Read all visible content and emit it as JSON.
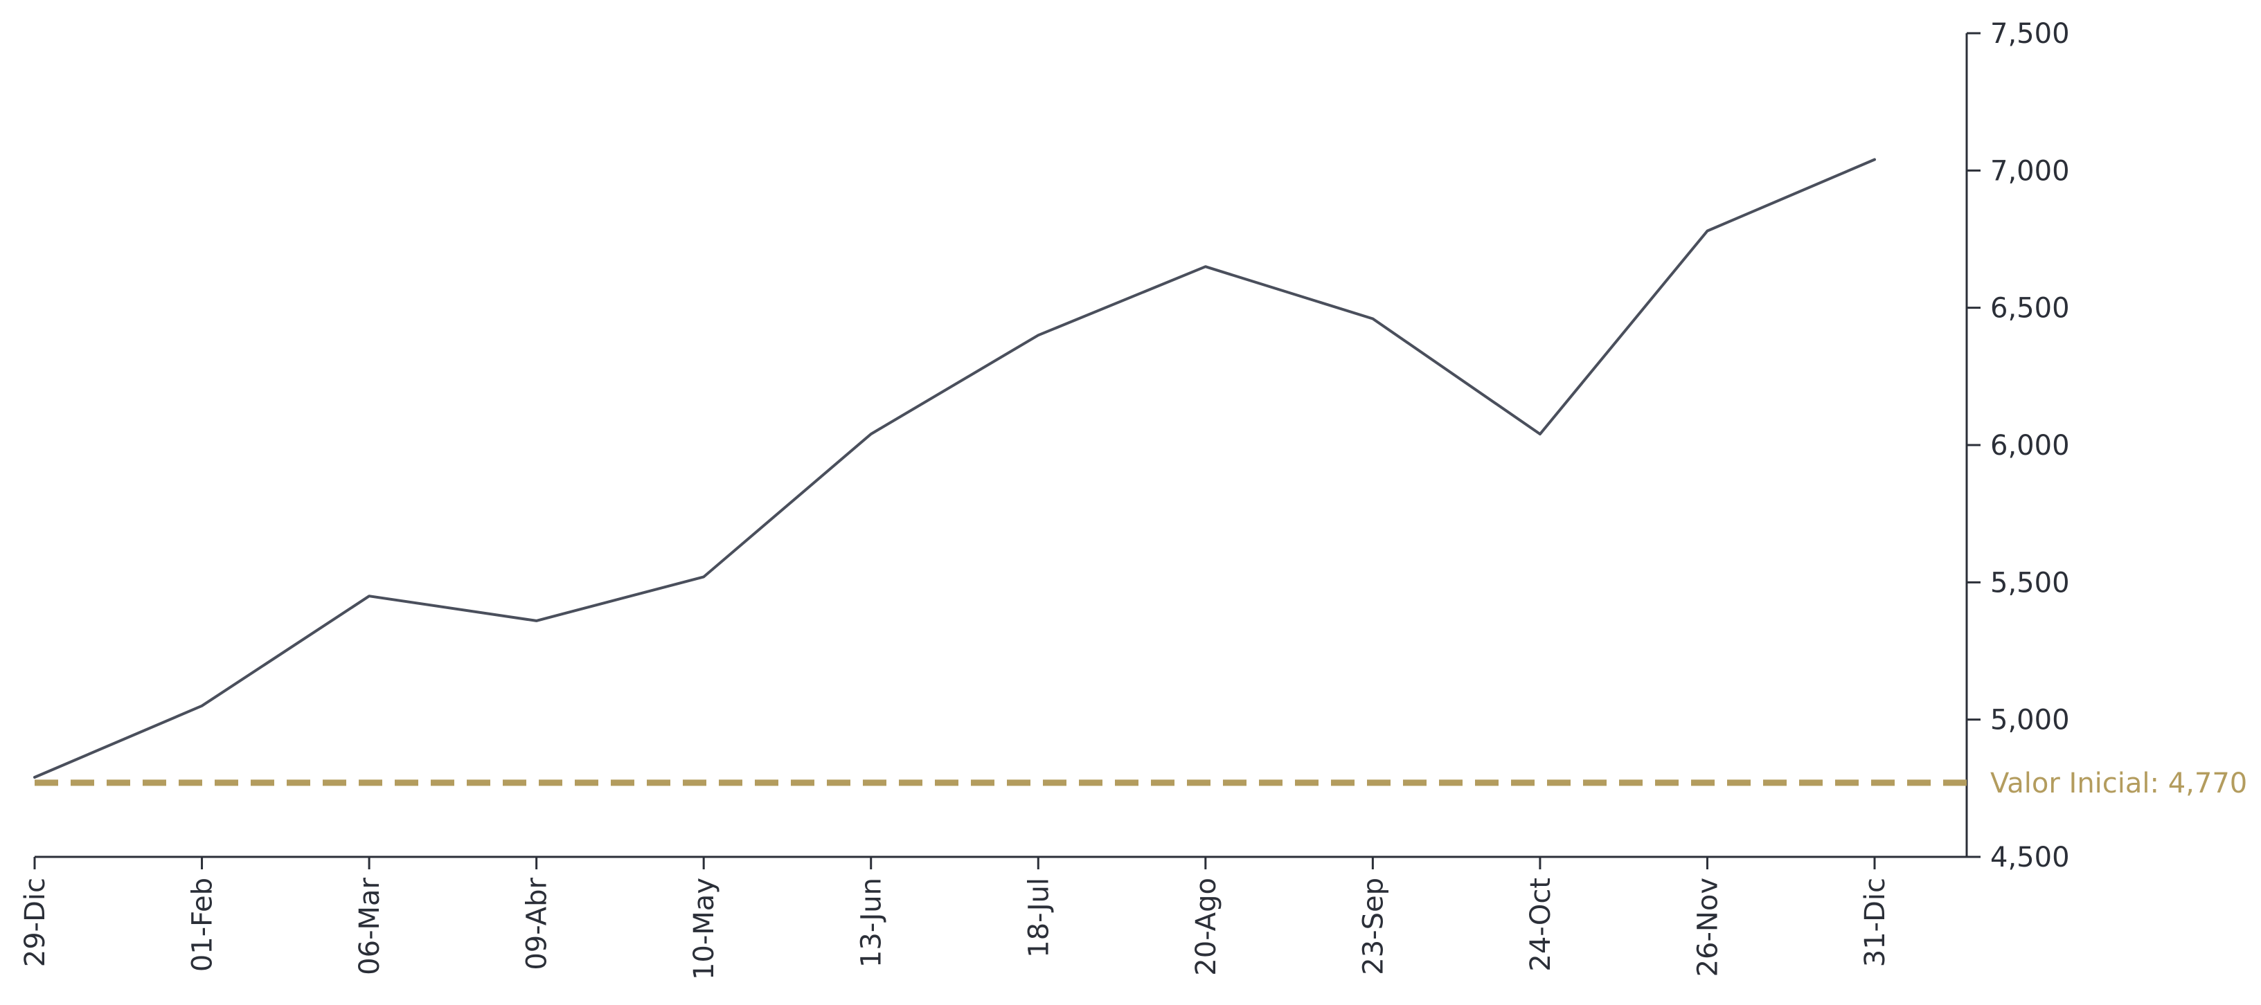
{
  "chart_data": {
    "type": "line",
    "title": "",
    "xlabel": "",
    "ylabel": "",
    "ylim": [
      4500,
      7500
    ],
    "y_ticks": [
      4500,
      5000,
      5500,
      6000,
      6500,
      7000,
      7500
    ],
    "y_tick_labels": [
      "4,500",
      "5,000",
      "5,500",
      "6,000",
      "6,500",
      "7,000",
      "7,500"
    ],
    "y_axis_side": "right",
    "grid": false,
    "x_ticks": [
      "29-Dic",
      "01-Feb",
      "06-Mar",
      "09-Abr",
      "10-May",
      "13-Jun",
      "18-Jul",
      "20-Ago",
      "23-Sep",
      "24-Oct",
      "26-Nov",
      "31-Dic"
    ],
    "series": [
      {
        "color": "#4a4f5c",
        "x": [
          "29-Dic",
          "01-Feb",
          "06-Mar",
          "09-Abr",
          "10-May",
          "13-Jun",
          "18-Jul",
          "20-Ago",
          "23-Sep",
          "24-Oct",
          "26-Nov",
          "31-Dic"
        ],
        "values": [
          4790,
          5050,
          5450,
          5360,
          5520,
          6040,
          6400,
          6650,
          6460,
          6040,
          6780,
          7040
        ]
      }
    ],
    "reference_line": {
      "value": 4770,
      "label": "Valor Inicial: 4,770",
      "color": "#b39c5e",
      "style": "dashed"
    },
    "line_color": "#4a4f5c",
    "axis_color": "#2b2f38"
  }
}
